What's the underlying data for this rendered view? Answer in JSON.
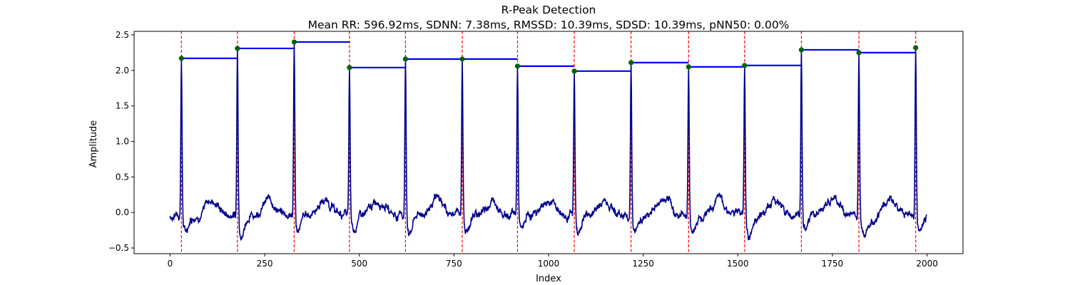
{
  "chart_data": {
    "type": "line",
    "title": "R-Peak Detection",
    "subtitle": "Mean RR: 596.92ms, SDNN: 7.38ms, RMSSD: 10.39ms, SDSD: 10.39ms, pNN50: 0.00%",
    "xlabel": "Index",
    "ylabel": "Amplitude",
    "xlim": [
      -95,
      2095
    ],
    "ylim": [
      -0.58,
      2.55
    ],
    "xticks": [
      0,
      250,
      500,
      750,
      1000,
      1250,
      1500,
      1750,
      2000
    ],
    "yticks": [
      -0.5,
      0.0,
      0.5,
      1.0,
      1.5,
      2.0,
      2.5
    ],
    "xtick_labels": [
      "0",
      "250",
      "500",
      "750",
      "1000",
      "1250",
      "1500",
      "1750",
      "2000"
    ],
    "ytick_labels": [
      "−0.5",
      "0.0",
      "0.5",
      "1.0",
      "1.5",
      "2.0",
      "2.5"
    ],
    "grid": false,
    "signal_length": 2000,
    "r_peaks": [
      {
        "index": 30,
        "amplitude": 2.17
      },
      {
        "index": 178,
        "amplitude": 2.31
      },
      {
        "index": 328,
        "amplitude": 2.4
      },
      {
        "index": 474,
        "amplitude": 2.04
      },
      {
        "index": 622,
        "amplitude": 2.16
      },
      {
        "index": 772,
        "amplitude": 2.16
      },
      {
        "index": 918,
        "amplitude": 2.06
      },
      {
        "index": 1068,
        "amplitude": 1.99
      },
      {
        "index": 1218,
        "amplitude": 2.11
      },
      {
        "index": 1370,
        "amplitude": 2.05
      },
      {
        "index": 1518,
        "amplitude": 2.07
      },
      {
        "index": 1668,
        "amplitude": 2.29
      },
      {
        "index": 1820,
        "amplitude": 2.25
      },
      {
        "index": 1970,
        "amplitude": 2.32
      }
    ],
    "colors": {
      "signal": "#00008b",
      "peak_marker": "#006400",
      "peak_line": "#ff0000",
      "rr_segment": "#0000ff"
    }
  }
}
